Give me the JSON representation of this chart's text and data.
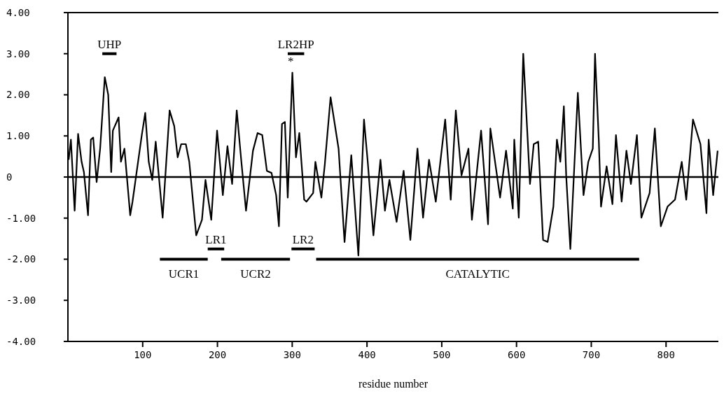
{
  "chart_data": {
    "type": "line",
    "xlabel": "residue number",
    "xlim": [
      0,
      870
    ],
    "xticks": [
      100,
      200,
      300,
      400,
      500,
      600,
      700,
      800
    ],
    "ylim": [
      -4,
      4
    ],
    "yticks": [
      {
        "value": -4,
        "label": "-4.00"
      },
      {
        "value": -3,
        "label": "-3.00"
      },
      {
        "value": -2,
        "label": "-2.00"
      },
      {
        "value": -1,
        "label": "-1.00"
      },
      {
        "value": 0,
        "label": "0"
      },
      {
        "value": 1,
        "label": "1.00"
      },
      {
        "value": 2,
        "label": "2.00"
      },
      {
        "value": 3,
        "label": "3.00"
      },
      {
        "value": 4,
        "label": "4.00"
      }
    ],
    "grid": false,
    "marker": "none",
    "line_style": "solid",
    "ref_lines": [
      {
        "axis": "y",
        "value": 0,
        "color": "#000000"
      }
    ],
    "series": [
      {
        "color": "#000000",
        "x": [
          1,
          4,
          9,
          13.6,
          18.3,
          21.4,
          26.9,
          30.7,
          33.8,
          38.4,
          43.1,
          49.3,
          53.9,
          57.9,
          60.1,
          67.8,
          70.9,
          75.6,
          83.3,
          86.4,
          98.8,
          103.4,
          108.1,
          112.8,
          117.4,
          126.7,
          136,
          142.2,
          146.8,
          151.5,
          157.7,
          162.3,
          171.6,
          179.3,
          184,
          191.7,
          199.5,
          207.2,
          213.4,
          219.6,
          225.8,
          232,
          238.2,
          247.5,
          253.7,
          259.9,
          266.1,
          272.3,
          278.5,
          282.2,
          286.3,
          290.2,
          294,
          300.2,
          305,
          309.5,
          316,
          319,
          328,
          331,
          339,
          343.6,
          351.3,
          362,
          370,
          379,
          388.5,
          396,
          401,
          408.6,
          418,
          424,
          430,
          439.6,
          449,
          458,
          467.5,
          475,
          483,
          492,
          504.6,
          512,
          518.8,
          526.4,
          535.7,
          540.3,
          552.6,
          561.9,
          565,
          573,
          578,
          586,
          595,
          597,
          603,
          609,
          618,
          623,
          629,
          635.5,
          641.6,
          649.3,
          654,
          658.6,
          663.3,
          666.4,
          672,
          682,
          689.6,
          696,
          702,
          705,
          710,
          713,
          720.5,
          728.3,
          733,
          740.6,
          747,
          753,
          761,
          767,
          778,
          785,
          793,
          802,
          812,
          821,
          827,
          836,
          846,
          854,
          857,
          863,
          869
        ],
        "values": [
          0.42,
          0.91,
          -0.82,
          1.05,
          0.37,
          0.12,
          -0.93,
          0.91,
          0.96,
          -0.12,
          0.69,
          2.43,
          2.0,
          0.12,
          1.13,
          1.45,
          0.37,
          0.69,
          -0.93,
          -0.6,
          1.02,
          1.56,
          0.37,
          -0.07,
          0.86,
          -0.99,
          1.62,
          1.24,
          0.48,
          0.8,
          0.8,
          0.37,
          -1.42,
          -1.04,
          -0.07,
          -1.04,
          1.13,
          -0.44,
          0.75,
          -0.17,
          1.62,
          0.37,
          -0.82,
          0.64,
          1.07,
          1.02,
          0.15,
          0.1,
          -0.44,
          -1.2,
          1.29,
          1.34,
          -0.5,
          2.54,
          0.48,
          1.07,
          -0.55,
          -0.6,
          -0.39,
          0.37,
          -0.5,
          0.31,
          1.94,
          0.69,
          -1.58,
          0.53,
          -1.91,
          1.4,
          0.37,
          -1.42,
          0.42,
          -0.82,
          -0.07,
          -1.09,
          0.15,
          -1.53,
          0.69,
          -0.99,
          0.42,
          -0.6,
          1.4,
          -0.55,
          1.62,
          0.04,
          0.69,
          -1.04,
          1.13,
          -1.15,
          1.18,
          0.15,
          -0.5,
          0.64,
          -0.77,
          0.91,
          -0.99,
          3.0,
          -0.17,
          0.8,
          0.86,
          -1.53,
          -1.58,
          -0.72,
          0.91,
          0.37,
          1.72,
          0.04,
          -1.75,
          2.05,
          -0.44,
          0.37,
          0.69,
          3.0,
          0.91,
          -0.72,
          0.26,
          -0.66,
          1.02,
          -0.6,
          0.64,
          -0.17,
          1.02,
          -0.99,
          -0.39,
          1.18,
          -1.2,
          -0.72,
          -0.55,
          0.37,
          -0.55,
          1.4,
          0.8,
          -0.88,
          0.91,
          -0.44,
          0.64
        ]
      },
      {
        "color": "#000000",
        "x": [
          46,
          65
        ],
        "values": [
          3,
          3
        ]
      },
      {
        "color": "#000000",
        "x": [
          294,
          316
        ],
        "values": [
          3,
          3
        ]
      },
      {
        "color": "#000000",
        "x": [
          187,
          209
        ],
        "values": [
          -1.75,
          -1.75
        ]
      },
      {
        "color": "#000000",
        "x": [
          299,
          330
        ],
        "values": [
          -1.75,
          -1.75
        ]
      },
      {
        "color": "#000000",
        "x": [
          123,
          187
        ],
        "values": [
          -2,
          -2
        ]
      },
      {
        "color": "#000000",
        "x": [
          205,
          297
        ],
        "values": [
          -2,
          -2
        ]
      },
      {
        "color": "#000000",
        "x": [
          332,
          764
        ],
        "values": [
          -2,
          -2
        ]
      }
    ],
    "annotations": [
      "UHP",
      "LR2HP",
      "LR1",
      "LR2",
      "UCR1",
      "UCR2",
      "CATALYTIC",
      "*"
    ]
  }
}
